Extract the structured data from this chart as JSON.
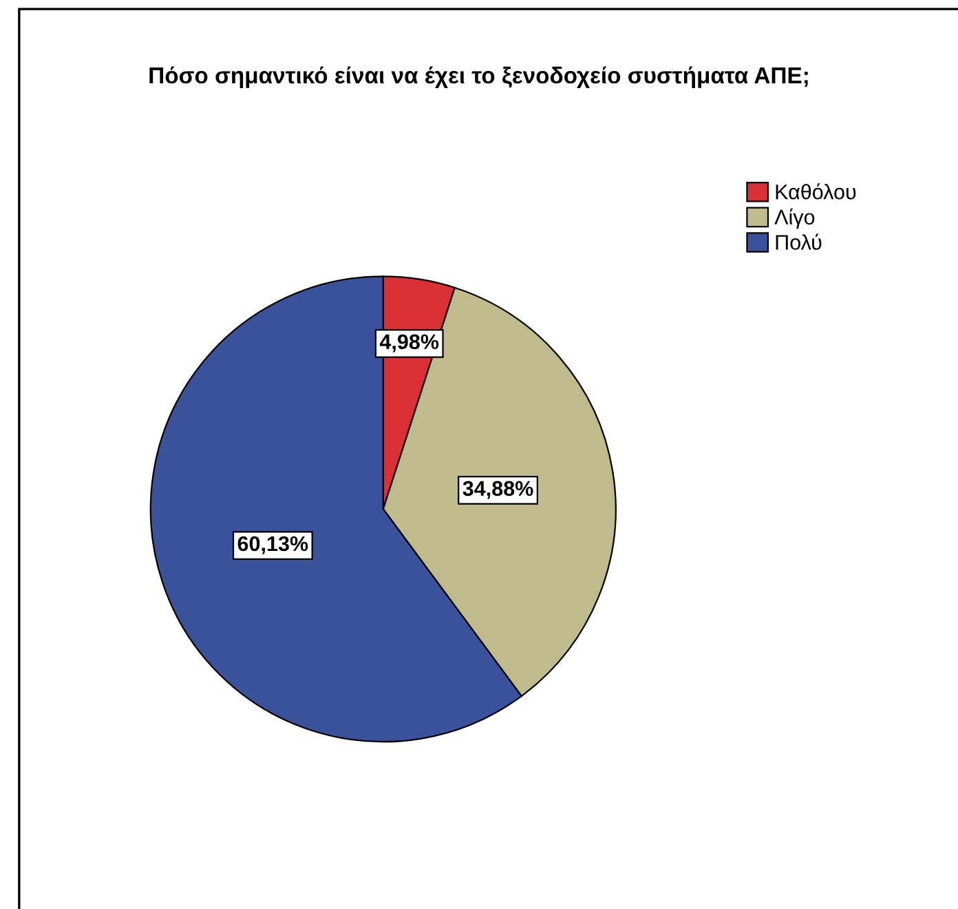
{
  "chart_data": {
    "type": "pie",
    "title": "Πόσο σημαντικό είναι να έχει το ξενοδοχείο συστήματα ΑΠΕ;",
    "categories": [
      "Καθόλου",
      "Λίγο",
      "Πολύ"
    ],
    "values": [
      4.98,
      34.88,
      60.13
    ],
    "colors": [
      "#d93036",
      "#bfbb8c",
      "#3a529b"
    ],
    "value_labels": [
      "4,98%",
      "34,88%",
      "60,13%"
    ],
    "legend": "top right"
  }
}
